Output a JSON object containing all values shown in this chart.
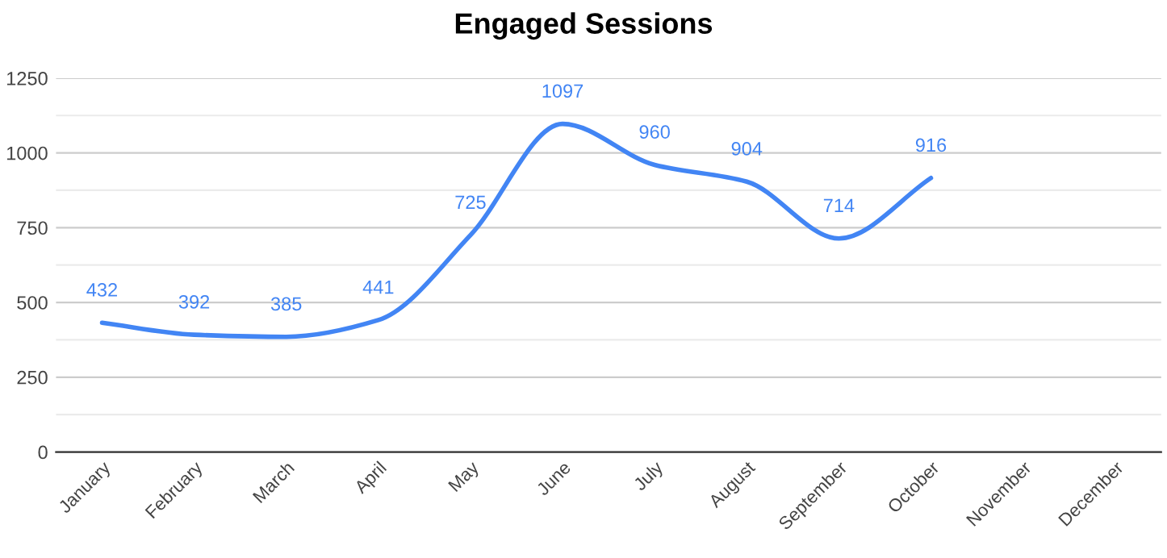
{
  "chart_data": {
    "type": "line",
    "title": "Engaged Sessions",
    "categories": [
      "January",
      "February",
      "March",
      "April",
      "May",
      "June",
      "July",
      "August",
      "September",
      "October",
      "November",
      "December"
    ],
    "series": [
      {
        "color": "#4285f4",
        "values": [
          432,
          392,
          385,
          441,
          725,
          1097,
          960,
          904,
          714,
          916,
          null,
          null
        ]
      }
    ],
    "ylim": [
      0,
      1250
    ],
    "yticks": [
      0,
      {
        "value": 125,
        "label": null
      },
      250,
      {
        "value": 375,
        "label": null
      },
      500,
      {
        "value": 625,
        "label": null
      },
      750,
      {
        "value": 875,
        "label": null
      },
      1000,
      {
        "value": 1125,
        "label": null
      },
      1250
    ],
    "grid": "y",
    "data_labels": true,
    "marker": "none",
    "line_style": "solid",
    "legend": false
  }
}
